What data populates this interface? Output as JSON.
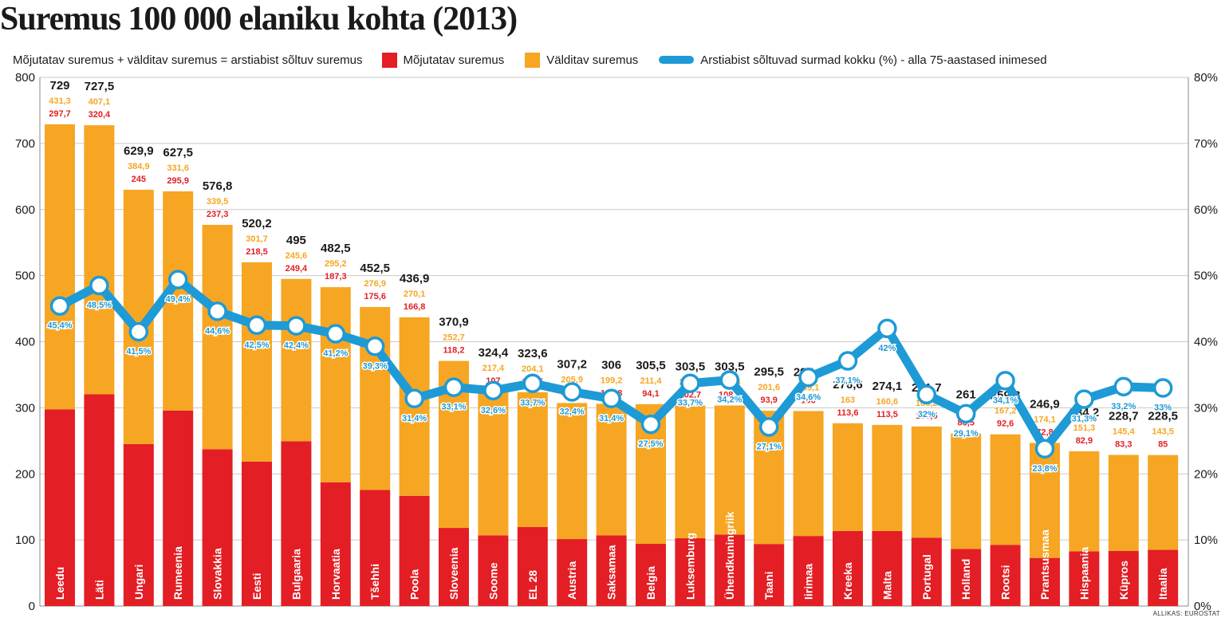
{
  "title": "Suremus 100 000 elaniku kohta (2013)",
  "legend": {
    "formula": "Mõjutatav suremus + välditav suremus = arstiabist sõltuv suremus",
    "series1": "Mõjutatav suremus",
    "series2": "Välditav suremus",
    "line": "Arstiabist sõltuvad surmad kokku (%) - alla 75-aastased inimesed"
  },
  "source": "ALLIKAS: EUROSTAT",
  "colors": {
    "red": "#e31e24",
    "orange": "#f6a623",
    "blue": "#1e9ad6",
    "grid": "#c9c9c9",
    "text": "#1a1a1a"
  },
  "chart_data": {
    "type": "bar",
    "stacked": true,
    "categories": [
      "Leedu",
      "Läti",
      "Ungari",
      "Rumeenia",
      "Slovakkia",
      "Eesti",
      "Bulgaaria",
      "Horvaatia",
      "Tšehhi",
      "Poola",
      "Sloveenia",
      "Soome",
      "EL 28",
      "Austria",
      "Saksamaa",
      "Belgia",
      "Luksemburg",
      "Ühendkuningriik",
      "Taani",
      "Iirimaa",
      "Kreeka",
      "Malta",
      "Portugal",
      "Holland",
      "Rootsi",
      "Prantsusmaa",
      "Hispaania",
      "Küpros",
      "Itaalia"
    ],
    "series": [
      {
        "name": "Mõjutatav suremus",
        "color": "#e31e24",
        "values": [
          297.7,
          320.4,
          245,
          295.9,
          237.3,
          218.5,
          249.4,
          187.3,
          175.6,
          166.8,
          118.2,
          107,
          119.5,
          101.3,
          106.8,
          94.1,
          102.7,
          108.1,
          93.9,
          106,
          113.6,
          113.5,
          103.5,
          86.5,
          92.6,
          72.8,
          82.9,
          83.3,
          85
        ],
        "labels": [
          "297,7",
          "320,4",
          "245",
          "295,9",
          "237,3",
          "218,5",
          "249,4",
          "187,3",
          "175,6",
          "166,8",
          "118,2",
          "107",
          "119,5",
          "101,3",
          "106,8",
          "94,1",
          "102,7",
          "108,1",
          "93,9",
          "106",
          "113,6",
          "113,5",
          "103,5",
          "86,5",
          "92,6",
          "72,8",
          "82,9",
          "83,3",
          "85"
        ]
      },
      {
        "name": "Välditav suremus",
        "color": "#f6a623",
        "values": [
          431.3,
          407.1,
          384.9,
          331.6,
          339.5,
          301.7,
          245.6,
          295.2,
          276.9,
          270.1,
          252.7,
          217.4,
          204.1,
          205.9,
          199.2,
          211.4,
          200.8,
          195.4,
          201.6,
          189.1,
          163,
          160.6,
          168.2,
          174.5,
          167.2,
          174.1,
          151.3,
          145.4,
          143.5
        ],
        "labels": [
          "431,3",
          "407,1",
          "384,9",
          "331,6",
          "339,5",
          "301,7",
          "245,6",
          "295,2",
          "276,9",
          "270,1",
          "252,7",
          "217,4",
          "204,1",
          "205,9",
          "199,2",
          "211,4",
          "200,8",
          "195,4",
          "201,6",
          "189,1",
          "163",
          "160,6",
          "168,2",
          "174,5",
          "167,2",
          "174,1",
          "151,3",
          "145,4",
          "143,5"
        ]
      }
    ],
    "totals": [
      729,
      727.5,
      629.9,
      627.5,
      576.8,
      520.2,
      495,
      482.5,
      452.5,
      436.9,
      370.9,
      324.4,
      323.6,
      307.2,
      306,
      305.5,
      303.5,
      303.5,
      295.5,
      295.1,
      276.6,
      274.1,
      271.7,
      261,
      259.8,
      246.9,
      234.2,
      228.7,
      228.5
    ],
    "total_labels": [
      "729",
      "727,5",
      "629,9",
      "627,5",
      "576,8",
      "520,2",
      "495",
      "482,5",
      "452,5",
      "436,9",
      "370,9",
      "324,4",
      "323,6",
      "307,2",
      "306",
      "305,5",
      "303,5",
      "303,5",
      "295,5",
      "295,1",
      "276,6",
      "274,1",
      "271,7",
      "261",
      "259,8",
      "246,9",
      "234,2",
      "228,7",
      "228,5"
    ],
    "line": {
      "name": "Arstiabist sõltuvad surmad kokku (%) - alla 75-aastased inimesed",
      "color": "#1e9ad6",
      "values": [
        45.4,
        48.5,
        41.5,
        49.4,
        44.6,
        42.5,
        42.4,
        41.2,
        39.3,
        31.4,
        33.1,
        32.6,
        33.7,
        32.4,
        31.4,
        27.5,
        33.7,
        34.2,
        27.1,
        34.6,
        37.1,
        42,
        32,
        29.1,
        34.1,
        23.8,
        31.3,
        33.2,
        33
      ],
      "labels": [
        "45,4%",
        "48,5%",
        "41,5%",
        "49,4%",
        "44,6%",
        "42,5%",
        "42,4%",
        "41,2%",
        "39,3%",
        "31,4%",
        "33,1%",
        "32,6%",
        "33,7%",
        "32,4%",
        "31,4%",
        "27,5%",
        "33,7%",
        "34,2%",
        "27,1%",
        "34,6%",
        "37,1%",
        "42%",
        "32%",
        "29,1%",
        "34,1%",
        "23,8%",
        "31,3%",
        "33,2%",
        "33%"
      ]
    },
    "y_left": {
      "min": 0,
      "max": 800,
      "ticks": [
        "0",
        "100",
        "200",
        "300",
        "400",
        "500",
        "600",
        "700",
        "800"
      ]
    },
    "y_right": {
      "min": 0,
      "max": 80,
      "ticks": [
        "0%",
        "10%",
        "20%",
        "30%",
        "40%",
        "50%",
        "60%",
        "70%",
        "80%"
      ]
    },
    "grid": true,
    "legend_position": "top"
  }
}
